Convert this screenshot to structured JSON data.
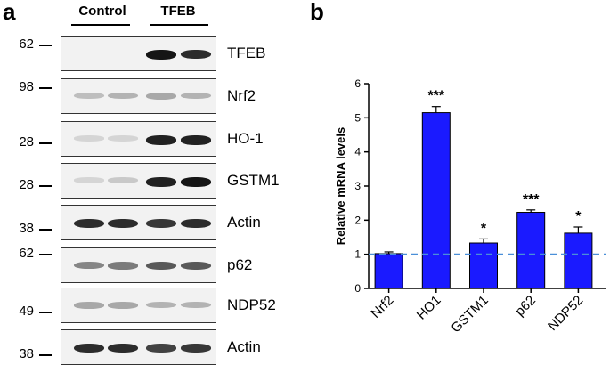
{
  "figure": {
    "panel_a_label": "a",
    "panel_b_label": "b",
    "groups": [
      "Control",
      "TFEB"
    ],
    "blots": [
      {
        "protein": "TFEB",
        "mw_marker": "62",
        "intensity": [
          0.0,
          0.0,
          0.95,
          0.85
        ]
      },
      {
        "protein": "Nrf2",
        "mw_marker": "98",
        "intensity": [
          0.2,
          0.25,
          0.3,
          0.25
        ]
      },
      {
        "protein": "HO-1",
        "mw_marker": "28",
        "intensity": [
          0.1,
          0.1,
          0.9,
          0.9
        ]
      },
      {
        "protein": "GSTM1",
        "mw_marker": "28",
        "intensity": [
          0.1,
          0.15,
          0.9,
          0.95
        ]
      },
      {
        "protein": "Actin",
        "mw_marker": "38",
        "intensity": [
          0.85,
          0.85,
          0.8,
          0.85
        ]
      },
      {
        "protein": "p62",
        "mw_marker": "62",
        "intensity": [
          0.45,
          0.5,
          0.65,
          0.65
        ]
      },
      {
        "protein": "NDP52",
        "mw_marker": "49",
        "intensity": [
          0.3,
          0.3,
          0.25,
          0.25
        ]
      },
      {
        "protein": "Actin",
        "mw_marker": "38",
        "intensity": [
          0.85,
          0.85,
          0.75,
          0.8
        ]
      }
    ]
  },
  "chart_data": {
    "type": "bar",
    "categories": [
      "Nrf2",
      "HO1",
      "GSTM1",
      "p62",
      "NDP52"
    ],
    "values": [
      1.02,
      5.15,
      1.33,
      2.23,
      1.62
    ],
    "errors": [
      0.05,
      0.18,
      0.12,
      0.07,
      0.18
    ],
    "significance": [
      "",
      "***",
      "*",
      "***",
      "*"
    ],
    "ylabel": "Relative mRNA levels",
    "xlabel": "",
    "ylim": [
      0,
      6
    ],
    "yticks": [
      0,
      1,
      2,
      3,
      4,
      5,
      6
    ],
    "reference_line": 1,
    "bar_color": "#1a1aff",
    "reference_line_color": "#4a8fd8"
  }
}
